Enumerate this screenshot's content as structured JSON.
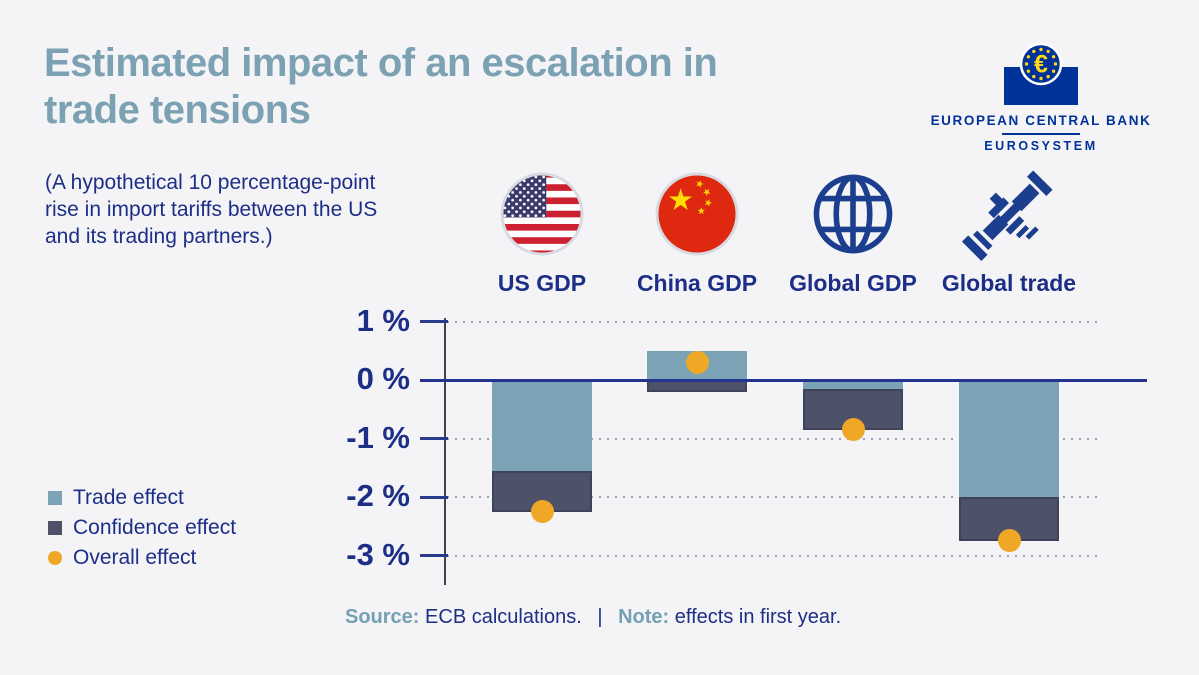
{
  "header": {
    "title": "Estimated impact of an escalation in trade tensions",
    "subtitle": "(A hypothetical 10 percentage-point rise in import tariffs between the US and its trading partners.)",
    "logo": {
      "bank_name": "EUROPEAN CENTRAL BANK",
      "system_name": "EUROSYSTEM",
      "euro_symbol": "€",
      "ecb_blue": "#003299",
      "star_yellow": "#ffd617"
    }
  },
  "columns": [
    {
      "label": "US GDP",
      "icon": "us-flag-icon"
    },
    {
      "label": "China GDP",
      "icon": "china-flag-icon"
    },
    {
      "label": "Global GDP",
      "icon": "globe-icon"
    },
    {
      "label": "Global trade",
      "icon": "handshake-icon"
    }
  ],
  "legend": {
    "items": [
      {
        "label": "Trade effect",
        "color": "#7ba2b5",
        "shape": "square"
      },
      {
        "label": "Confidence effect",
        "color": "#4e5269",
        "shape": "square"
      },
      {
        "label": "Overall effect",
        "color": "#efa825",
        "shape": "circle"
      }
    ]
  },
  "chart_data": {
    "type": "bar",
    "subtype": "stacked-bars-with-overall-dots",
    "title": "Estimated impact of an escalation in trade tensions",
    "categories": [
      "US GDP",
      "China GDP",
      "Global GDP",
      "Global trade"
    ],
    "series": [
      {
        "name": "Trade effect",
        "color": "#7ba2b5",
        "values": [
          -1.55,
          0.5,
          -0.15,
          -2.0
        ]
      },
      {
        "name": "Confidence effect",
        "color": "#4e5269",
        "values": [
          -0.7,
          -0.2,
          -0.7,
          -0.75
        ]
      }
    ],
    "overall_dots": {
      "name": "Overall effect",
      "color": "#efa825",
      "values": [
        -2.25,
        0.3,
        -0.85,
        -2.75
      ]
    },
    "unit": "%",
    "ylim": [
      -3.55,
      1.15
    ],
    "yticks": [
      {
        "value": 1,
        "label": "1 %"
      },
      {
        "value": 0,
        "label": "0 %"
      },
      {
        "value": -1,
        "label": "-1 %"
      },
      {
        "value": -2,
        "label": "-2 %"
      },
      {
        "value": -3,
        "label": "-3 %"
      }
    ],
    "grid": "dotted horizontal lines at non-zero ticks, solid navy line at zero drawn over bars",
    "legend_position": "left"
  },
  "footer": {
    "source_label": "Source:",
    "source_text": "ECB calculations.",
    "separator": "|",
    "note_label": "Note:",
    "note_text": "effects in first year."
  },
  "colors": {
    "background": "#f4f4f6",
    "title_teal": "#7ba1b3",
    "navy_text": "#1d2e87",
    "axis_line": "#3f4450",
    "tick_navy": "#2b3a8f",
    "zero_line": "#24338f",
    "grid_dotted": "#9aa0b4",
    "icon_blue": "#1c3e8e",
    "flag_ring": "#d7dbe1",
    "us_red": "#cb2130",
    "us_canton": "#3a3a6a",
    "china_red": "#de2910",
    "china_yellow": "#ffde00"
  }
}
